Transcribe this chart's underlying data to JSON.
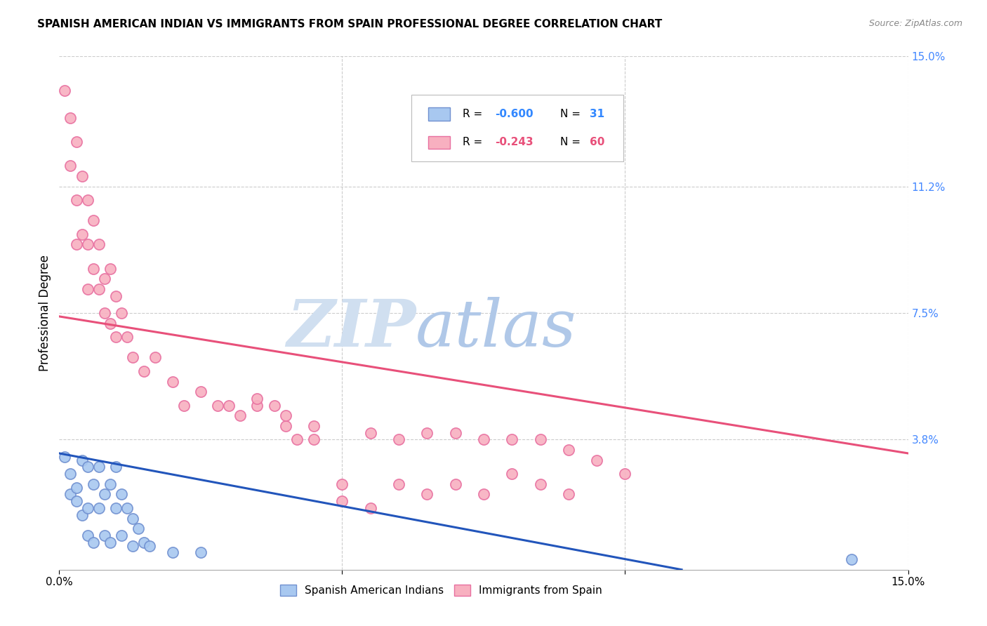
{
  "title": "SPANISH AMERICAN INDIAN VS IMMIGRANTS FROM SPAIN PROFESSIONAL DEGREE CORRELATION CHART",
  "source": "Source: ZipAtlas.com",
  "ylabel": "Professional Degree",
  "xlim": [
    0,
    0.15
  ],
  "ylim": [
    0,
    0.15
  ],
  "ytick_labels_right": [
    "15.0%",
    "11.2%",
    "7.5%",
    "3.8%",
    ""
  ],
  "ytick_positions_right": [
    0.15,
    0.112,
    0.075,
    0.038,
    0.0
  ],
  "color_blue": "#A8C8F0",
  "color_pink": "#F8B0C0",
  "color_blue_line": "#2255BB",
  "color_pink_line": "#E8507A",
  "color_blue_edge": "#7090D0",
  "color_pink_edge": "#E870A0",
  "watermark_zip": "#C8D8EC",
  "watermark_atlas": "#A8C0E0",
  "grid_color": "#CCCCCC",
  "background_color": "#FFFFFF",
  "scatter_blue_x": [
    0.001,
    0.002,
    0.002,
    0.003,
    0.003,
    0.004,
    0.004,
    0.005,
    0.005,
    0.005,
    0.006,
    0.006,
    0.007,
    0.007,
    0.008,
    0.008,
    0.009,
    0.009,
    0.01,
    0.01,
    0.011,
    0.011,
    0.012,
    0.013,
    0.013,
    0.014,
    0.015,
    0.016,
    0.02,
    0.025,
    0.14
  ],
  "scatter_blue_y": [
    0.033,
    0.028,
    0.022,
    0.024,
    0.02,
    0.032,
    0.016,
    0.03,
    0.018,
    0.01,
    0.025,
    0.008,
    0.03,
    0.018,
    0.022,
    0.01,
    0.025,
    0.008,
    0.03,
    0.018,
    0.022,
    0.01,
    0.018,
    0.015,
    0.007,
    0.012,
    0.008,
    0.007,
    0.005,
    0.005,
    0.003
  ],
  "scatter_pink_x": [
    0.001,
    0.002,
    0.002,
    0.003,
    0.003,
    0.003,
    0.004,
    0.004,
    0.005,
    0.005,
    0.005,
    0.006,
    0.006,
    0.007,
    0.007,
    0.008,
    0.008,
    0.009,
    0.009,
    0.01,
    0.01,
    0.011,
    0.012,
    0.013,
    0.015,
    0.017,
    0.02,
    0.022,
    0.025,
    0.028,
    0.03,
    0.032,
    0.035,
    0.04,
    0.042,
    0.045,
    0.05,
    0.055,
    0.06,
    0.065,
    0.07,
    0.075,
    0.08,
    0.085,
    0.09,
    0.095,
    0.1,
    0.035,
    0.038,
    0.04,
    0.045,
    0.05,
    0.055,
    0.06,
    0.065,
    0.07,
    0.075,
    0.08,
    0.085,
    0.09
  ],
  "scatter_pink_y": [
    0.14,
    0.132,
    0.118,
    0.125,
    0.108,
    0.095,
    0.115,
    0.098,
    0.108,
    0.095,
    0.082,
    0.102,
    0.088,
    0.095,
    0.082,
    0.085,
    0.075,
    0.088,
    0.072,
    0.08,
    0.068,
    0.075,
    0.068,
    0.062,
    0.058,
    0.062,
    0.055,
    0.048,
    0.052,
    0.048,
    0.048,
    0.045,
    0.048,
    0.042,
    0.038,
    0.042,
    0.025,
    0.04,
    0.038,
    0.04,
    0.04,
    0.038,
    0.038,
    0.038,
    0.035,
    0.032,
    0.028,
    0.05,
    0.048,
    0.045,
    0.038,
    0.02,
    0.018,
    0.025,
    0.022,
    0.025,
    0.022,
    0.028,
    0.025,
    0.022
  ],
  "blue_line_x": [
    0.0,
    0.11
  ],
  "blue_line_y": [
    0.034,
    0.0
  ],
  "pink_line_x": [
    0.0,
    0.15
  ],
  "pink_line_y": [
    0.074,
    0.034
  ]
}
